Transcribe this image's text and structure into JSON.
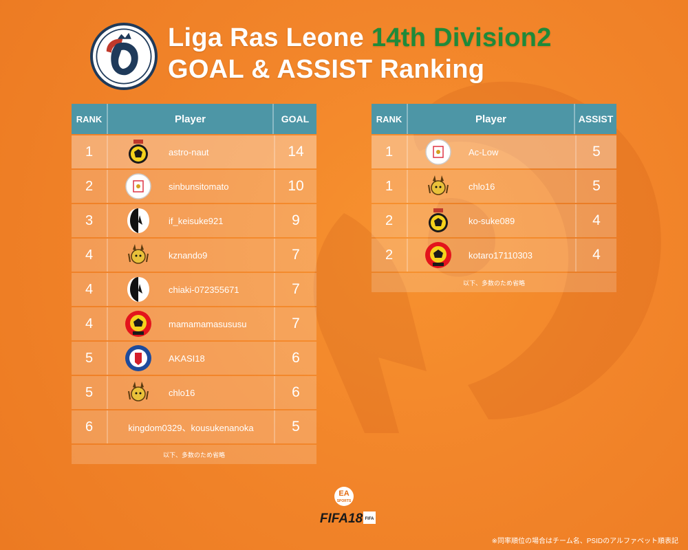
{
  "header": {
    "title_main": "Liga Ras Leone",
    "title_division": "14th Division2",
    "subtitle": "GOAL & ASSIST Ranking",
    "logo_text": "Liga Ras Leone"
  },
  "colors": {
    "accent_green": "#1f8a3a",
    "table_header": "#4d96a6",
    "background": "#f2852a"
  },
  "goals": {
    "headers": {
      "rank": "RANK",
      "player": "Player",
      "value": "GOAL"
    },
    "rows": [
      {
        "rank": "1",
        "player": "astro-naut",
        "value": "14",
        "badge": "yellow-black-crest-icon"
      },
      {
        "rank": "2",
        "player": "sinbunsitomato",
        "value": "10",
        "badge": "white-shield-crest-icon"
      },
      {
        "rank": "3",
        "player": "if_keisuke921",
        "value": "9",
        "badge": "black-white-crest-icon"
      },
      {
        "rank": "4",
        "player": "kznando9",
        "value": "7",
        "badge": "devil-mascot-crest-icon"
      },
      {
        "rank": "4",
        "player": "chiaki-072355671",
        "value": "7",
        "badge": "black-white-crest-icon"
      },
      {
        "rank": "4",
        "player": "mamamamasususu",
        "value": "7",
        "badge": "red-yellow-crest-icon"
      },
      {
        "rank": "5",
        "player": "AKASI18",
        "value": "6",
        "badge": "blue-round-crest-icon"
      },
      {
        "rank": "5",
        "player": "chlo16",
        "value": "6",
        "badge": "devil-mascot-crest-icon"
      },
      {
        "rank": "6",
        "player": "kingdom0329、kousukenanoka",
        "value": "5",
        "badge": ""
      }
    ],
    "note": "以下、多数のため省略"
  },
  "assists": {
    "headers": {
      "rank": "RANK",
      "player": "Player",
      "value": "ASSIST"
    },
    "rows": [
      {
        "rank": "1",
        "player": "Ac-Low",
        "value": "5",
        "badge": "white-shield-crest-icon"
      },
      {
        "rank": "1",
        "player": "chlo16",
        "value": "5",
        "badge": "devil-mascot-crest-icon"
      },
      {
        "rank": "2",
        "player": "ko-suke089",
        "value": "4",
        "badge": "yellow-black-crest-icon"
      },
      {
        "rank": "2",
        "player": "kotaro17110303",
        "value": "4",
        "badge": "red-yellow-crest-icon"
      }
    ],
    "note": "以下、多数のため省略"
  },
  "footer": {
    "fifa_logo_text": "FIFA18",
    "ea_text": "EA SPORTS",
    "footnote": "※同率順位の場合はチーム名、PSIDのアルファベット順表記"
  }
}
